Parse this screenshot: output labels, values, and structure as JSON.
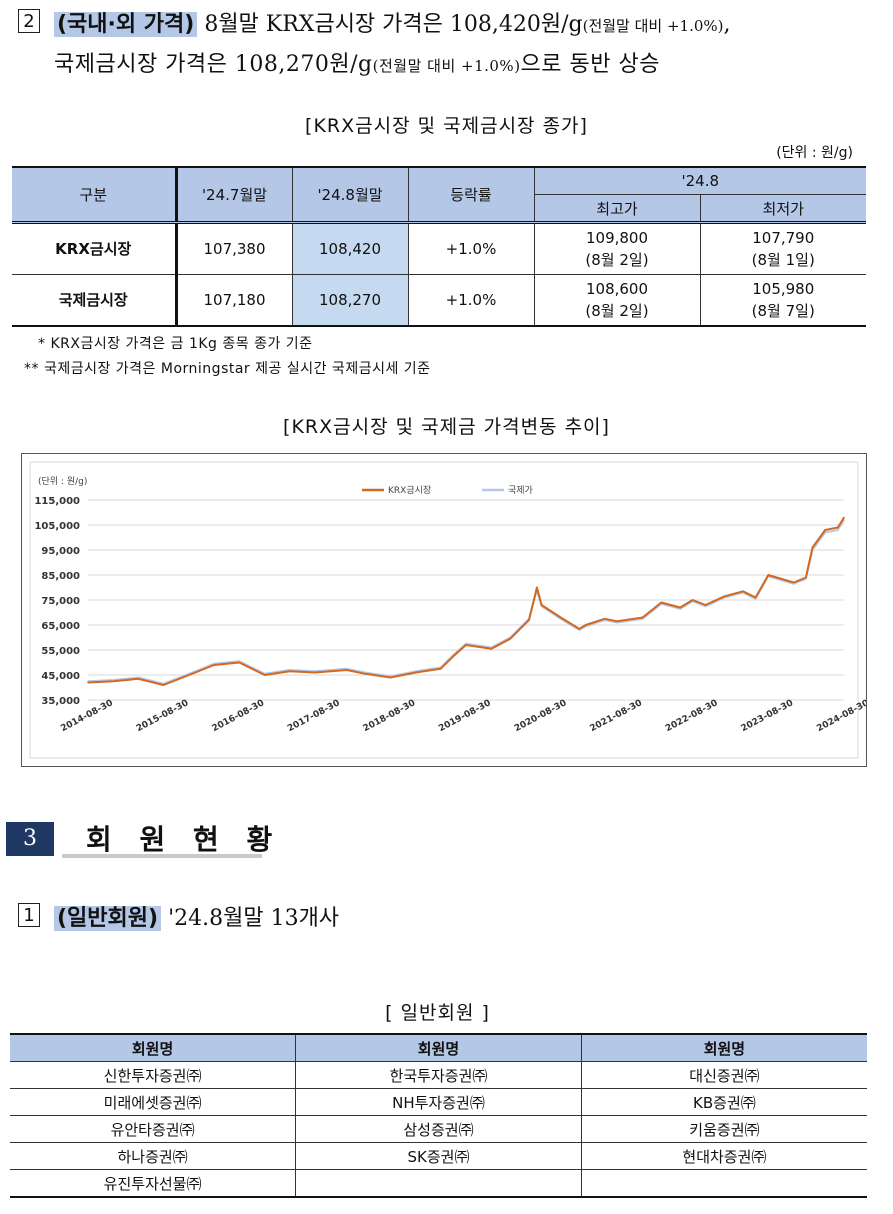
{
  "section2": {
    "number": "2",
    "highlight": "(국내·외 가격)",
    "line1_rest_a": " 8월말 KRX금시장 가격은 108,420원/g",
    "line1_small": "(전월말 대비 +1.0%)",
    "line1_tail": ",",
    "line2_a": "국제금시장 가격은 108,270원/g",
    "line2_small": "(전월말 대비 +1.0%)",
    "line2_b": "으로 동반 상승"
  },
  "price_table": {
    "caption": "[KRX금시장 및 국제금시장 종가]",
    "unit": "(단위 : 원/g)",
    "headers": {
      "category": "구분",
      "prev_month": "'24.7월말",
      "curr_month": "'24.8월말",
      "change": "등락률",
      "period": "'24.8",
      "high": "최고가",
      "low": "최저가"
    },
    "rows": [
      {
        "name": "KRX금시장",
        "prev": "107,380",
        "curr": "108,420",
        "change": "+1.0%",
        "high": "109,800",
        "high_date": "(8월 2일)",
        "low": "107,790",
        "low_date": "(8월 1일)"
      },
      {
        "name": "국제금시장",
        "prev": "107,180",
        "curr": "108,270",
        "change": "+1.0%",
        "high": "108,600",
        "high_date": "(8월 2일)",
        "low": "105,980",
        "low_date": "(8월 7일)"
      }
    ],
    "notes": [
      "*  KRX금시장 가격은 금 1Kg 종목 종가 기준",
      "**  국제금시장 가격은 Morningstar 제공 실시간 국제금시세 기준"
    ]
  },
  "chart_caption": "[KRX금시장 및 국제금 가격변동 추이]",
  "chart_data": {
    "type": "line",
    "unit_label": "(단위 : 원/g)",
    "ylim": [
      35000,
      115000
    ],
    "y_ticks": [
      "115,000",
      "105,000",
      "95,000",
      "85,000",
      "75,000",
      "65,000",
      "55,000",
      "45,000",
      "35,000"
    ],
    "x_ticks": [
      "2014-08-30",
      "2015-08-30",
      "2016-08-30",
      "2017-08-30",
      "2018-08-30",
      "2019-08-30",
      "2020-08-30",
      "2021-08-30",
      "2022-08-30",
      "2023-08-30",
      "2024-08-30"
    ],
    "grid": true,
    "legend_position": "top-center",
    "series": [
      {
        "name": "KRX금시장",
        "color": "#d2691e",
        "x": [
          "2014-08-30",
          "2014-12-31",
          "2015-04-30",
          "2015-08-30",
          "2016-01-31",
          "2016-04-30",
          "2016-08-30",
          "2016-12-31",
          "2017-04-30",
          "2017-08-30",
          "2018-01-31",
          "2018-04-30",
          "2018-08-30",
          "2018-12-31",
          "2019-04-30",
          "2019-06-30",
          "2019-08-30",
          "2019-12-31",
          "2020-03-31",
          "2020-06-30",
          "2020-08-07",
          "2020-08-30",
          "2020-11-30",
          "2021-02-28",
          "2021-03-31",
          "2021-06-30",
          "2021-08-30",
          "2021-12-31",
          "2022-03-31",
          "2022-06-30",
          "2022-08-30",
          "2022-10-31",
          "2023-01-31",
          "2023-04-30",
          "2023-06-30",
          "2023-08-30",
          "2023-12-31",
          "2024-02-28",
          "2024-03-31",
          "2024-05-31",
          "2024-07-31",
          "2024-08-30"
        ],
        "values": [
          42000,
          42500,
          43500,
          41000,
          46000,
          49000,
          50000,
          45000,
          46500,
          46000,
          47000,
          45500,
          44000,
          46000,
          47500,
          52500,
          57000,
          55500,
          59500,
          67000,
          80000,
          73000,
          68000,
          63500,
          65000,
          67500,
          66500,
          68000,
          74000,
          72000,
          75000,
          73000,
          76500,
          78500,
          76000,
          85000,
          82000,
          84000,
          96000,
          103000,
          104000,
          108000
        ]
      },
      {
        "name": "국제가",
        "color": "#b4c7e7",
        "x": [
          "2014-08-30",
          "2014-12-31",
          "2015-04-30",
          "2015-08-30",
          "2016-01-31",
          "2016-04-30",
          "2016-08-30",
          "2016-12-31",
          "2017-04-30",
          "2017-08-30",
          "2018-01-31",
          "2018-04-30",
          "2018-08-30",
          "2018-12-31",
          "2019-04-30",
          "2019-06-30",
          "2019-08-30",
          "2019-12-31",
          "2020-03-31",
          "2020-06-30",
          "2020-08-07",
          "2020-08-30",
          "2020-11-30",
          "2021-02-28",
          "2021-03-31",
          "2021-06-30",
          "2021-08-30",
          "2021-12-31",
          "2022-03-31",
          "2022-06-30",
          "2022-08-30",
          "2022-10-31",
          "2023-01-31",
          "2023-04-30",
          "2023-06-30",
          "2023-08-30",
          "2023-12-31",
          "2024-02-28",
          "2024-03-31",
          "2024-05-31",
          "2024-07-31",
          "2024-08-30"
        ],
        "values": [
          42500,
          43000,
          44000,
          41500,
          46500,
          49500,
          50500,
          45500,
          47000,
          46500,
          47500,
          46000,
          44500,
          46500,
          48000,
          53000,
          57500,
          56000,
          60000,
          67500,
          79000,
          72500,
          67500,
          63000,
          64500,
          67000,
          66000,
          67500,
          73500,
          71500,
          74500,
          72500,
          76000,
          78000,
          75500,
          84500,
          81500,
          83500,
          95000,
          102000,
          103000,
          107000
        ]
      }
    ]
  },
  "section3": {
    "number": "3",
    "title": "회 원 현 황"
  },
  "section3_1": {
    "number": "1",
    "highlight": "(일반회원)",
    "rest": " '24.8월말 13개사"
  },
  "members_table": {
    "caption": "[ 일반회원 ]",
    "headers": [
      "회원명",
      "회원명",
      "회원명"
    ],
    "rows": [
      [
        "신한투자증권㈜",
        "한국투자증권㈜",
        "대신증권㈜"
      ],
      [
        "미래에셋증권㈜",
        "NH투자증권㈜",
        "KB증권㈜"
      ],
      [
        "유안타증권㈜",
        "삼성증권㈜",
        "키움증권㈜"
      ],
      [
        "하나증권㈜",
        "SK증권㈜",
        "현대차증권㈜"
      ],
      [
        "유진투자선물㈜",
        "",
        ""
      ]
    ]
  }
}
